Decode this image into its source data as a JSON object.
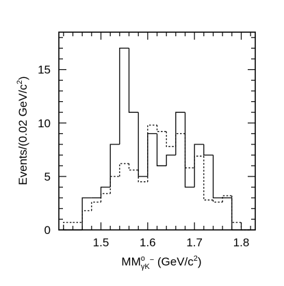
{
  "chart_data": {
    "type": "histogram",
    "xlim": [
      1.41,
      1.83
    ],
    "ylim": [
      0,
      18.5
    ],
    "x_ticks": [
      "1.5",
      "1.6",
      "1.7",
      "1.8"
    ],
    "x_tick_values": [
      1.5,
      1.6,
      1.7,
      1.8
    ],
    "y_ticks": [
      "0",
      "5",
      "10",
      "15"
    ],
    "y_tick_values": [
      0,
      5,
      10,
      15
    ],
    "xlabel": {
      "base": "MM",
      "sup": "o",
      "sub": "γK",
      "sub_sup": "−",
      "rest": " (GeV/c",
      "sq": "2",
      "close": ")"
    },
    "ylabel": {
      "base": "Events/(0.02 GeV/c",
      "sq": "2",
      "close": ")"
    },
    "bin_edges": [
      1.42,
      1.44,
      1.46,
      1.48,
      1.5,
      1.52,
      1.54,
      1.56,
      1.58,
      1.6,
      1.62,
      1.64,
      1.66,
      1.68,
      1.7,
      1.72,
      1.74,
      1.76,
      1.78,
      1.8,
      1.82
    ],
    "series": [
      {
        "style": "solid",
        "values": [
          0,
          0,
          3,
          3,
          4,
          8,
          17,
          11,
          5,
          9,
          6,
          7,
          11,
          4,
          8,
          7,
          3,
          3,
          0,
          0
        ]
      },
      {
        "style": "dotted",
        "values": [
          0.7,
          0.7,
          1.8,
          2.6,
          3.4,
          5.0,
          6.2,
          5.6,
          4.5,
          9.8,
          9.2,
          7.8,
          9.0,
          5.8,
          6.9,
          2.8,
          2.6,
          3.2,
          0.7,
          0.0
        ]
      }
    ],
    "grid": false,
    "legend": "none"
  }
}
